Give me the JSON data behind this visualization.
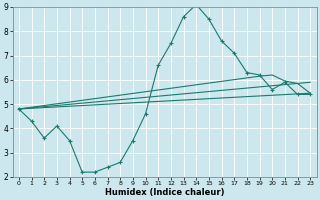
{
  "xlabel": "Humidex (Indice chaleur)",
  "xlim": [
    -0.5,
    23.5
  ],
  "ylim": [
    2,
    9
  ],
  "xticks": [
    0,
    1,
    2,
    3,
    4,
    5,
    6,
    7,
    8,
    9,
    10,
    11,
    12,
    13,
    14,
    15,
    16,
    17,
    18,
    19,
    20,
    21,
    22,
    23
  ],
  "yticks": [
    2,
    3,
    4,
    5,
    6,
    7,
    8,
    9
  ],
  "bg_color": "#cce8ee",
  "line_color": "#1a7a6e",
  "line1_x": [
    0,
    1,
    2,
    3,
    4,
    5,
    6,
    7,
    8,
    9,
    10,
    11,
    12,
    13,
    14,
    15,
    16,
    17,
    18,
    19,
    20,
    21,
    22,
    23
  ],
  "line1_y": [
    4.8,
    4.3,
    3.6,
    4.1,
    3.5,
    2.2,
    2.2,
    2.4,
    2.6,
    3.5,
    4.6,
    6.6,
    7.5,
    8.6,
    9.1,
    8.5,
    7.6,
    7.1,
    6.3,
    6.2,
    5.6,
    5.9,
    5.4,
    5.4
  ],
  "line2_x": [
    0,
    23
  ],
  "line2_y": [
    4.8,
    5.45
  ],
  "line3_x": [
    0,
    23
  ],
  "line3_y": [
    4.8,
    5.9
  ],
  "line4_x": [
    0,
    19,
    20,
    21,
    22,
    23
  ],
  "line4_y": [
    4.8,
    6.15,
    6.2,
    5.95,
    5.85,
    5.45
  ],
  "grid_color": "#ffffff",
  "spine_color": "#888888"
}
